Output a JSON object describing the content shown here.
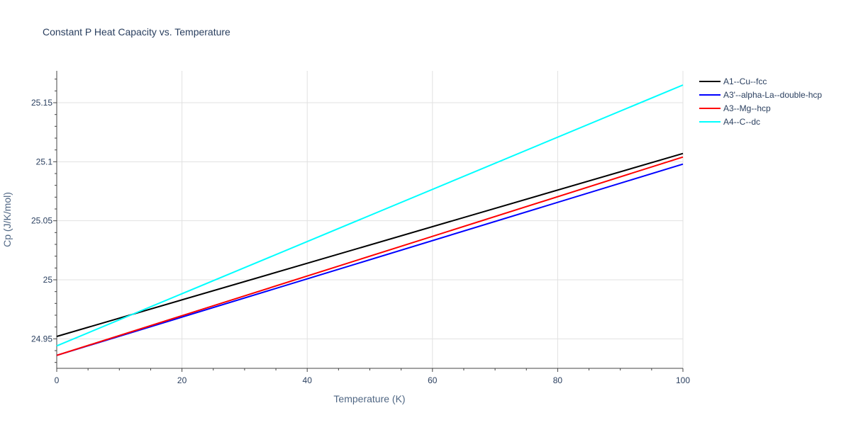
{
  "chart_data": {
    "type": "line",
    "title": "Constant P Heat Capacity vs. Temperature",
    "xlabel": "Temperature (K)",
    "ylabel": "Cp (J/K/mol)",
    "xlim": [
      0,
      100
    ],
    "ylim": [
      24.925,
      25.177
    ],
    "x_ticks": [
      0,
      20,
      40,
      60,
      80,
      100
    ],
    "x_tick_labels": [
      "0",
      "20",
      "40",
      "60",
      "80",
      "100"
    ],
    "y_ticks": [
      24.95,
      25.0,
      25.05,
      25.1,
      25.15
    ],
    "y_tick_labels": [
      "24.95",
      "25",
      "25.05",
      "25.1",
      "25.15"
    ],
    "grid": true,
    "legend_position": "top-right",
    "series": [
      {
        "name": "A1--Cu--fcc",
        "color": "#000000",
        "x": [
          0,
          100
        ],
        "y": [
          24.952,
          25.107
        ]
      },
      {
        "name": "A3'--alpha-La--double-hcp",
        "color": "#0000ff",
        "x": [
          0,
          100
        ],
        "y": [
          24.936,
          25.098
        ]
      },
      {
        "name": "A3--Mg--hcp",
        "color": "#ff0000",
        "x": [
          0,
          100
        ],
        "y": [
          24.936,
          25.104
        ]
      },
      {
        "name": "A4--C--dc",
        "color": "#00ffff",
        "x": [
          0,
          100
        ],
        "y": [
          24.944,
          25.165
        ]
      }
    ]
  }
}
